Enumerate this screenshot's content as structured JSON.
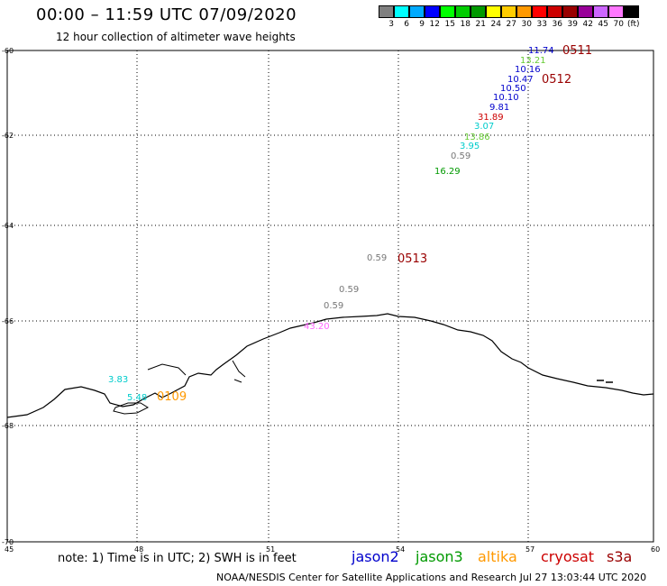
{
  "header": {
    "title": "00:00 – 11:59 UTC 07/09/2020",
    "subtitle": "12 hour collection of altimeter wave heights"
  },
  "scale": {
    "colors": [
      "#808080",
      "#00ffff",
      "#00aaff",
      "#0000ff",
      "#00ff00",
      "#00cc00",
      "#009900",
      "#ffff00",
      "#ffcc00",
      "#ff9900",
      "#ff0000",
      "#cc0000",
      "#990000",
      "#990099",
      "#cc66ff",
      "#ff77ff",
      "#000000"
    ],
    "labels": [
      "3",
      "6",
      "9",
      "12",
      "15",
      "18",
      "21",
      "24",
      "27",
      "30",
      "33",
      "36",
      "39",
      "42",
      "45",
      "70"
    ],
    "unit": "(ft)"
  },
  "chart_data": {
    "type": "map",
    "lat_ticks": [
      "-60",
      "-62",
      "-64",
      "-66",
      "-68",
      "-70"
    ],
    "lon_ticks": [
      "45",
      "48",
      "51",
      "54",
      "57",
      "60"
    ],
    "lat_range": [
      -70,
      -60
    ],
    "lon_range": [
      45,
      60
    ],
    "grid": "dotted",
    "observations": [
      {
        "lon": 57.0,
        "lat": -60.1,
        "value": "11.74",
        "color": "#0000cc"
      },
      {
        "lon": 56.9,
        "lat": -60.3,
        "value": "13.21",
        "color": "#66cc33"
      },
      {
        "lon": 56.7,
        "lat": -60.5,
        "value": "10.16",
        "color": "#0000cc"
      },
      {
        "lon": 56.5,
        "lat": -60.7,
        "value": "10.47",
        "color": "#0000cc"
      },
      {
        "lon": 56.3,
        "lat": -60.9,
        "value": "10.50",
        "color": "#0000cc"
      },
      {
        "lon": 56.2,
        "lat": -61.1,
        "value": "10.10",
        "color": "#0000cc"
      },
      {
        "lon": 56.0,
        "lat": -61.3,
        "value": "9.81",
        "color": "#0000cc"
      },
      {
        "lon": 55.8,
        "lat": -61.5,
        "value": "31.89",
        "color": "#cc0000"
      },
      {
        "lon": 55.6,
        "lat": -61.7,
        "value": "3.07",
        "color": "#00cccc"
      },
      {
        "lon": 55.5,
        "lat": -61.9,
        "value": "13.86",
        "color": "#66cc33"
      },
      {
        "lon": 55.3,
        "lat": -62.1,
        "value": "3.95",
        "color": "#00cccc"
      },
      {
        "lon": 55.1,
        "lat": -62.4,
        "value": "0.59",
        "color": "#777777"
      },
      {
        "lon": 54.9,
        "lat": -62.7,
        "value": "16.29",
        "color": "#009900"
      },
      {
        "lon": 53.6,
        "lat": -64.6,
        "value": "0.59",
        "color": "#777777"
      },
      {
        "lon": 52.7,
        "lat": -65.3,
        "value": "0.59",
        "color": "#777777"
      },
      {
        "lon": 52.4,
        "lat": -65.7,
        "value": "0.59",
        "color": "#777777"
      },
      {
        "lon": 52.0,
        "lat": -66.0,
        "value": "43.20",
        "color": "#ff66ff"
      },
      {
        "lon": 47.5,
        "lat": -67.2,
        "value": "3.83",
        "color": "#00cccc"
      },
      {
        "lon": 47.9,
        "lat": -67.5,
        "value": "5.48",
        "color": "#00cccc"
      }
    ],
    "time_labels": [
      {
        "text": "0511",
        "color": "#990000"
      },
      {
        "text": "0512",
        "color": "#990000"
      },
      {
        "text": "0513",
        "color": "#990000"
      },
      {
        "text": "0109",
        "color": "#ff9900"
      }
    ]
  },
  "footer": {
    "note": "note: 1) Time is in UTC; 2) SWH is in feet",
    "satellites": [
      {
        "name": "jason2",
        "color": "#0000cc"
      },
      {
        "name": "jason3",
        "color": "#009900"
      },
      {
        "name": "altika",
        "color": "#ff9900"
      },
      {
        "name": "cryosat",
        "color": "#cc0000"
      },
      {
        "name": "s3a",
        "color": "#990000"
      }
    ],
    "credit": "NOAA/NESDIS Center for Satellite Applications and Research   Jul 27 13:03:44 UTC 2020"
  }
}
